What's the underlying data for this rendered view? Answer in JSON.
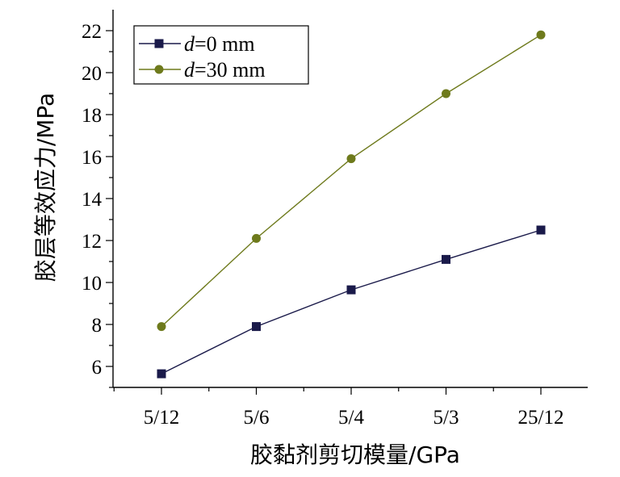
{
  "chart_data": {
    "type": "line",
    "categories": [
      "5/12",
      "5/6",
      "5/4",
      "5/3",
      "25/12"
    ],
    "series": [
      {
        "name_var": "d",
        "name_value": "=0 mm",
        "marker": "square",
        "color": "#1a1a4a",
        "values": [
          5.65,
          7.9,
          9.65,
          11.1,
          12.5
        ]
      },
      {
        "name_var": "d",
        "name_value": "=30 mm",
        "marker": "circle",
        "color": "#6e7a1c",
        "values": [
          7.9,
          12.1,
          15.9,
          19.0,
          21.8
        ]
      }
    ],
    "xlabel": "胶黏剂剪切模量/GPa",
    "ylabel": "胶层等效应力/MPa",
    "ylim": [
      5,
      23
    ],
    "yticks": [
      "6",
      "8",
      "10",
      "12",
      "14",
      "16",
      "18",
      "20",
      "22"
    ],
    "legend_position": "top-left",
    "grid": false
  }
}
